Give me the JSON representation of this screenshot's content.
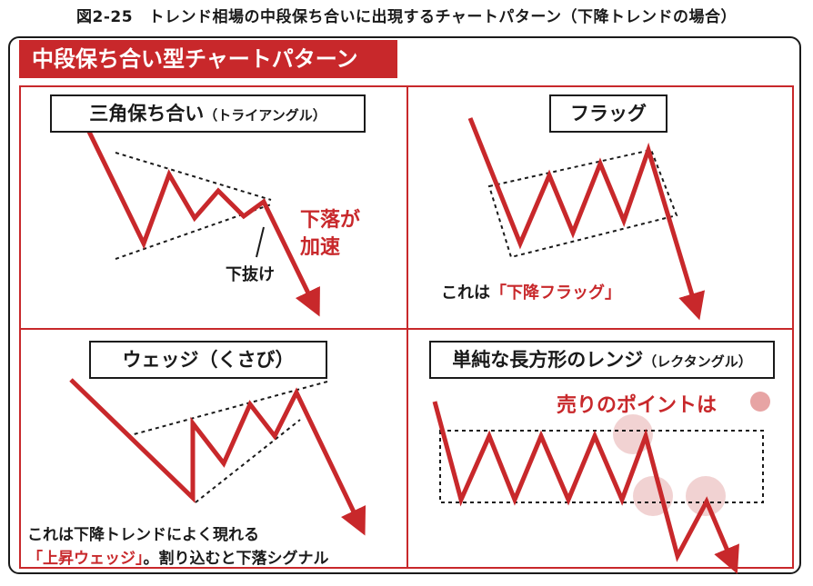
{
  "figure": {
    "title": "図2-25　トレンド相場の中段保ち合いに出現するチャートパターン（下降トレンドの場合）"
  },
  "banner": {
    "text": "中段保ち合い型チャートパターン"
  },
  "panels": {
    "triangle": {
      "title": "三角保ち合い",
      "title_sub": "（トライアングル）",
      "callout_main": "下落が",
      "callout_main2": "加速",
      "callout_break": "下抜け"
    },
    "flag": {
      "title": "フラッグ",
      "note_prefix": "これは",
      "note_highlight": "「下降フラッグ」"
    },
    "wedge": {
      "title": "ウェッジ（くさび）",
      "note_line1": "これは下降トレンドによく現れる",
      "note_highlight": "「上昇ウェッジ」",
      "note_suffix": "。割り込むと下落シグナル"
    },
    "range": {
      "title": "単純な長方形のレンジ",
      "title_sub": "（レクタングル）",
      "legend_text": "売りのポイントは"
    }
  },
  "colors": {
    "accent": "#c8282b",
    "highlight_circle": "#efcaca",
    "ink": "#1a1a1a"
  }
}
